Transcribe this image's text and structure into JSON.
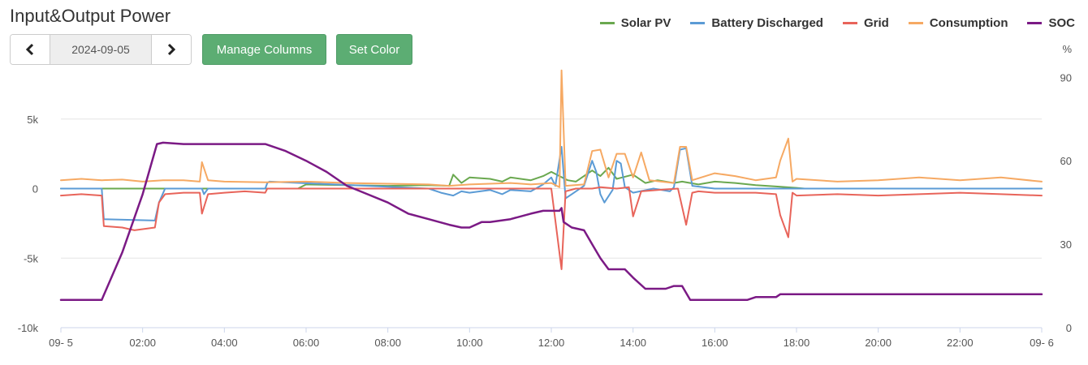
{
  "title": "Input&Output Power",
  "date_nav": {
    "date": "2024-09-05"
  },
  "buttons": {
    "manage_columns": "Manage Columns",
    "set_color": "Set Color"
  },
  "chart_data": {
    "type": "line",
    "title": "Input&Output Power",
    "x_ticks": [
      "09- 5",
      "02:00",
      "04:00",
      "06:00",
      "08:00",
      "10:00",
      "12:00",
      "14:00",
      "16:00",
      "18:00",
      "20:00",
      "22:00",
      "09- 6"
    ],
    "x_range_hours": [
      0,
      24
    ],
    "y_left": {
      "ticks": [
        "-10k",
        "-5k",
        "0",
        "5k"
      ],
      "range": [
        -10000,
        10000
      ]
    },
    "y_right": {
      "unit": "%",
      "ticks": [
        "0",
        "30",
        "60",
        "90"
      ],
      "range": [
        0,
        100
      ]
    },
    "grid": true,
    "legend_position": "top-right",
    "series": [
      {
        "name": "Solar PV",
        "color": "#6aa84f",
        "axis": "left",
        "points": [
          [
            0,
            0
          ],
          [
            5.8,
            0
          ],
          [
            6,
            300
          ],
          [
            7,
            250
          ],
          [
            8,
            200
          ],
          [
            9,
            250
          ],
          [
            9.5,
            200
          ],
          [
            9.6,
            1000
          ],
          [
            9.8,
            400
          ],
          [
            10,
            800
          ],
          [
            10.5,
            700
          ],
          [
            10.8,
            500
          ],
          [
            11,
            800
          ],
          [
            11.5,
            600
          ],
          [
            11.8,
            900
          ],
          [
            12,
            1200
          ],
          [
            12.2,
            900
          ],
          [
            12.4,
            600
          ],
          [
            12.6,
            500
          ],
          [
            13,
            1300
          ],
          [
            13.2,
            900
          ],
          [
            13.4,
            1500
          ],
          [
            13.6,
            700
          ],
          [
            14,
            1000
          ],
          [
            14.3,
            400
          ],
          [
            14.6,
            600
          ],
          [
            15,
            400
          ],
          [
            15.2,
            500
          ],
          [
            15.6,
            300
          ],
          [
            16,
            500
          ],
          [
            16.5,
            400
          ],
          [
            17,
            250
          ],
          [
            17.5,
            150
          ],
          [
            18,
            50
          ],
          [
            18.2,
            0
          ],
          [
            24,
            0
          ]
        ]
      },
      {
        "name": "Battery Discharged",
        "color": "#5b9bd5",
        "axis": "left",
        "points": [
          [
            0,
            0
          ],
          [
            1,
            0
          ],
          [
            1.05,
            -2200
          ],
          [
            2.3,
            -2300
          ],
          [
            2.4,
            -1000
          ],
          [
            2.55,
            0
          ],
          [
            3.45,
            0
          ],
          [
            3.5,
            -400
          ],
          [
            3.6,
            0
          ],
          [
            5,
            0
          ],
          [
            5.05,
            400
          ],
          [
            5.1,
            500
          ],
          [
            9,
            0
          ],
          [
            9.3,
            -300
          ],
          [
            9.6,
            -500
          ],
          [
            9.8,
            -200
          ],
          [
            10,
            -300
          ],
          [
            10.5,
            -100
          ],
          [
            10.8,
            -400
          ],
          [
            11,
            -100
          ],
          [
            11.5,
            -200
          ],
          [
            11.8,
            300
          ],
          [
            12,
            800
          ],
          [
            12.1,
            200
          ],
          [
            12.25,
            3000
          ],
          [
            12.35,
            -700
          ],
          [
            12.5,
            -400
          ],
          [
            12.8,
            200
          ],
          [
            13,
            2000
          ],
          [
            13.1,
            1200
          ],
          [
            13.2,
            -400
          ],
          [
            13.3,
            -1000
          ],
          [
            13.5,
            -100
          ],
          [
            13.6,
            2000
          ],
          [
            13.7,
            1800
          ],
          [
            13.8,
            100
          ],
          [
            14,
            -300
          ],
          [
            14.5,
            0
          ],
          [
            14.9,
            -200
          ],
          [
            15,
            100
          ],
          [
            15.15,
            2800
          ],
          [
            15.3,
            2900
          ],
          [
            15.45,
            200
          ],
          [
            16,
            0
          ],
          [
            24,
            0
          ]
        ]
      },
      {
        "name": "Grid",
        "color": "#e8645a",
        "axis": "left",
        "points": [
          [
            0,
            -500
          ],
          [
            0.5,
            -400
          ],
          [
            1,
            -500
          ],
          [
            1.05,
            -2700
          ],
          [
            1.5,
            -2800
          ],
          [
            1.8,
            -3000
          ],
          [
            2.3,
            -2800
          ],
          [
            2.4,
            -1000
          ],
          [
            2.55,
            -400
          ],
          [
            3,
            -300
          ],
          [
            3.4,
            -300
          ],
          [
            3.45,
            -1800
          ],
          [
            3.6,
            -400
          ],
          [
            4,
            -300
          ],
          [
            4.5,
            -200
          ],
          [
            5,
            -300
          ],
          [
            5.05,
            0
          ],
          [
            9,
            0
          ],
          [
            10,
            0
          ],
          [
            11.5,
            0
          ],
          [
            12,
            0
          ],
          [
            12.25,
            -5800
          ],
          [
            12.35,
            -200
          ],
          [
            12.6,
            0
          ],
          [
            13,
            0
          ],
          [
            13.2,
            100
          ],
          [
            13.6,
            0
          ],
          [
            13.9,
            100
          ],
          [
            14,
            -2000
          ],
          [
            14.2,
            -200
          ],
          [
            14.6,
            -100
          ],
          [
            15.1,
            0
          ],
          [
            15.3,
            -2600
          ],
          [
            15.45,
            -300
          ],
          [
            15.6,
            -200
          ],
          [
            16,
            -300
          ],
          [
            17,
            -300
          ],
          [
            17.5,
            -400
          ],
          [
            17.6,
            -1900
          ],
          [
            17.8,
            -3500
          ],
          [
            17.9,
            -300
          ],
          [
            18,
            -500
          ],
          [
            19,
            -400
          ],
          [
            20,
            -500
          ],
          [
            21,
            -400
          ],
          [
            22,
            -300
          ],
          [
            23,
            -400
          ],
          [
            24,
            -500
          ]
        ]
      },
      {
        "name": "Consumption",
        "color": "#f6a963",
        "axis": "left",
        "points": [
          [
            0,
            600
          ],
          [
            0.5,
            700
          ],
          [
            1,
            600
          ],
          [
            1.5,
            650
          ],
          [
            2,
            500
          ],
          [
            2.5,
            600
          ],
          [
            3,
            600
          ],
          [
            3.4,
            500
          ],
          [
            3.45,
            1900
          ],
          [
            3.6,
            600
          ],
          [
            4,
            500
          ],
          [
            5,
            450
          ],
          [
            6,
            500
          ],
          [
            7,
            400
          ],
          [
            8,
            350
          ],
          [
            9,
            300
          ],
          [
            9.5,
            200
          ],
          [
            10,
            300
          ],
          [
            11,
            400
          ],
          [
            11.5,
            300
          ],
          [
            12,
            400
          ],
          [
            12.2,
            100
          ],
          [
            12.25,
            8500
          ],
          [
            12.35,
            200
          ],
          [
            12.8,
            300
          ],
          [
            13,
            2700
          ],
          [
            13.2,
            2800
          ],
          [
            13.4,
            800
          ],
          [
            13.6,
            2500
          ],
          [
            13.8,
            2500
          ],
          [
            14,
            800
          ],
          [
            14.2,
            2600
          ],
          [
            14.4,
            600
          ],
          [
            15,
            400
          ],
          [
            15.15,
            3000
          ],
          [
            15.3,
            3000
          ],
          [
            15.45,
            600
          ],
          [
            16,
            1100
          ],
          [
            16.5,
            900
          ],
          [
            17,
            600
          ],
          [
            17.5,
            800
          ],
          [
            17.6,
            2000
          ],
          [
            17.8,
            3600
          ],
          [
            17.9,
            500
          ],
          [
            18,
            700
          ],
          [
            19,
            500
          ],
          [
            20,
            600
          ],
          [
            21,
            800
          ],
          [
            22,
            600
          ],
          [
            23,
            800
          ],
          [
            24,
            500
          ]
        ]
      },
      {
        "name": "SOC",
        "color": "#7b1a85",
        "axis": "right",
        "points": [
          [
            0,
            10
          ],
          [
            1,
            10
          ],
          [
            1.5,
            27
          ],
          [
            2,
            48
          ],
          [
            2.35,
            66
          ],
          [
            2.5,
            66.5
          ],
          [
            3,
            66
          ],
          [
            3.5,
            66
          ],
          [
            4,
            66
          ],
          [
            4.5,
            66
          ],
          [
            5,
            66
          ],
          [
            5.5,
            63.5
          ],
          [
            6,
            60
          ],
          [
            6.5,
            56
          ],
          [
            7,
            51
          ],
          [
            7.5,
            48
          ],
          [
            8,
            45
          ],
          [
            8.5,
            41
          ],
          [
            9,
            39
          ],
          [
            9.5,
            37
          ],
          [
            9.8,
            36
          ],
          [
            10,
            36
          ],
          [
            10.3,
            38
          ],
          [
            10.5,
            38
          ],
          [
            11,
            39
          ],
          [
            11.5,
            41
          ],
          [
            11.8,
            42
          ],
          [
            12,
            42
          ],
          [
            12.2,
            42
          ],
          [
            12.25,
            43
          ],
          [
            12.3,
            38
          ],
          [
            12.5,
            36
          ],
          [
            12.8,
            35
          ],
          [
            13,
            30
          ],
          [
            13.2,
            25
          ],
          [
            13.4,
            21
          ],
          [
            13.8,
            21
          ],
          [
            14,
            18
          ],
          [
            14.3,
            14
          ],
          [
            14.5,
            14
          ],
          [
            14.8,
            14
          ],
          [
            15,
            15
          ],
          [
            15.2,
            15
          ],
          [
            15.4,
            10
          ],
          [
            16,
            10
          ],
          [
            16.8,
            10
          ],
          [
            17,
            11
          ],
          [
            17.5,
            11
          ],
          [
            17.6,
            12
          ],
          [
            18,
            12
          ],
          [
            24,
            12
          ]
        ]
      }
    ]
  }
}
